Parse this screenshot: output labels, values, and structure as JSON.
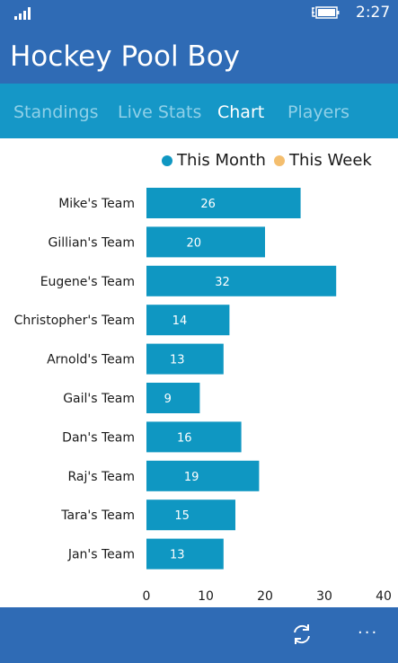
{
  "status_bar": {
    "time": "2:27",
    "icons": [
      "signal-icon",
      "battery-charging-icon"
    ]
  },
  "app": {
    "title": "Hockey Pool Boy"
  },
  "tabs": [
    {
      "label": "Standings",
      "active": false
    },
    {
      "label": "Live Stats",
      "active": false
    },
    {
      "label": "Chart",
      "active": true
    },
    {
      "label": "Players",
      "active": false
    }
  ],
  "legend": {
    "this_month": "This Month",
    "this_week": "This Week"
  },
  "colors": {
    "header": "#2f6bb5",
    "tab_bar": "#1597c7",
    "this_month": "#0f97c2",
    "this_week": "#f4be6e",
    "tab_inactive": "#8fd0e8",
    "tab_active": "#ffffff"
  },
  "chart_data": {
    "type": "bar",
    "orientation": "horizontal",
    "categories": [
      "Mike's Team",
      "Gillian's Team",
      "Eugene's Team",
      "Christopher's Team",
      "Arnold's Team",
      "Gail's Team",
      "Dan's Team",
      "Raj's Team",
      "Tara's Team",
      "Jan's Team"
    ],
    "series": [
      {
        "name": "This Month",
        "values": [
          26,
          20,
          32,
          14,
          13,
          9,
          16,
          19,
          15,
          13
        ]
      },
      {
        "name": "This Week",
        "values": [
          0,
          0,
          0,
          0,
          0,
          0,
          0,
          0,
          0,
          0
        ]
      }
    ],
    "xlim": [
      0,
      40
    ],
    "xticks": [
      0,
      10,
      20,
      30,
      40
    ],
    "data_labels": true,
    "legend_position": "top-right",
    "grid": false
  },
  "app_bar": {
    "icons": [
      "refresh-icon",
      "more-icon"
    ],
    "more_label": "..."
  }
}
